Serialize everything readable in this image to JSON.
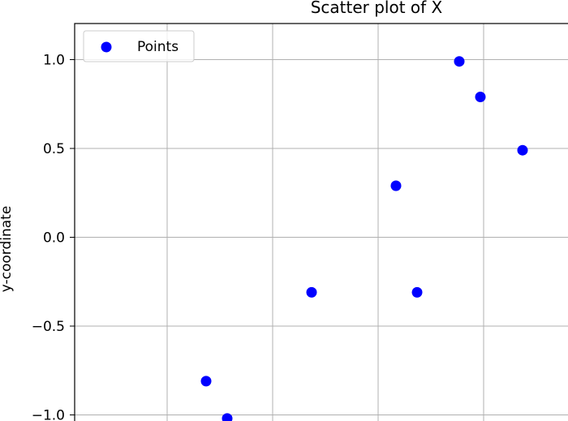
{
  "chart_data": {
    "type": "scatter",
    "title": "Scatter plot of X",
    "xlabel": "",
    "ylabel": "y-coordinate",
    "ylim": [
      -1.0,
      1.0
    ],
    "yticks": [
      1.0,
      0.5,
      0.0,
      -0.5,
      -1.0
    ],
    "ytick_labels": [
      "1.0",
      "0.5",
      "0.0",
      "−0.5",
      "−1.0"
    ],
    "grid": true,
    "legend_position": "top-left",
    "series": [
      {
        "name": "Points",
        "color": "#0000ff",
        "marker": "circle",
        "x": [
          -0.8,
          -0.7,
          -0.3,
          0.1,
          0.2,
          0.4,
          0.5,
          0.7
        ],
        "y": [
          -0.81,
          -1.02,
          -0.31,
          0.29,
          -0.31,
          0.99,
          0.79,
          0.49
        ]
      }
    ]
  }
}
